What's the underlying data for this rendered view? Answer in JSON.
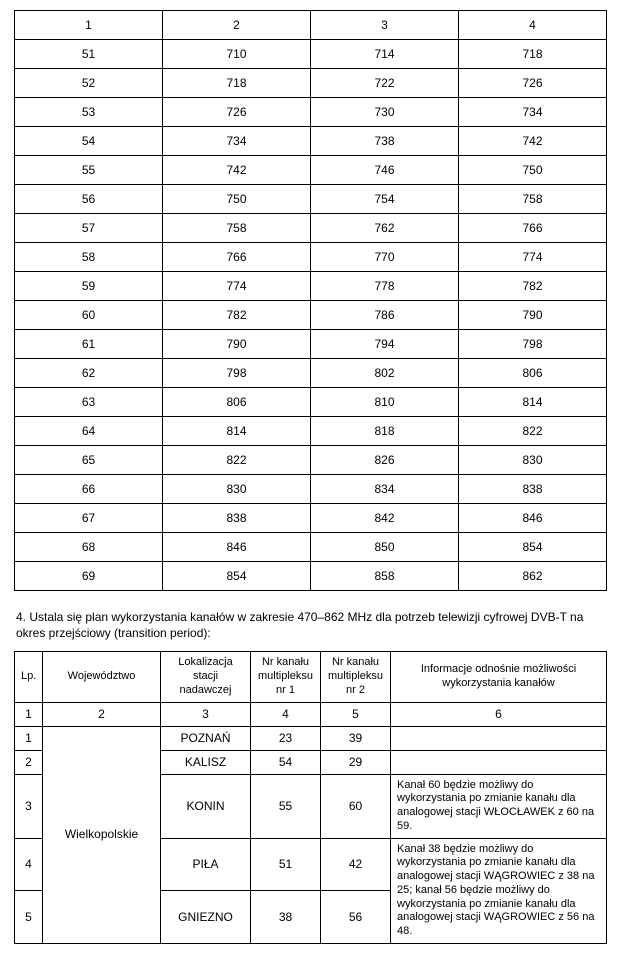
{
  "table1": {
    "header": [
      "1",
      "2",
      "3",
      "4"
    ],
    "rows": [
      [
        "51",
        "710",
        "714",
        "718"
      ],
      [
        "52",
        "718",
        "722",
        "726"
      ],
      [
        "53",
        "726",
        "730",
        "734"
      ],
      [
        "54",
        "734",
        "738",
        "742"
      ],
      [
        "55",
        "742",
        "746",
        "750"
      ],
      [
        "56",
        "750",
        "754",
        "758"
      ],
      [
        "57",
        "758",
        "762",
        "766"
      ],
      [
        "58",
        "766",
        "770",
        "774"
      ],
      [
        "59",
        "774",
        "778",
        "782"
      ],
      [
        "60",
        "782",
        "786",
        "790"
      ],
      [
        "61",
        "790",
        "794",
        "798"
      ],
      [
        "62",
        "798",
        "802",
        "806"
      ],
      [
        "63",
        "806",
        "810",
        "814"
      ],
      [
        "64",
        "814",
        "818",
        "822"
      ],
      [
        "65",
        "822",
        "826",
        "830"
      ],
      [
        "66",
        "830",
        "834",
        "838"
      ],
      [
        "67",
        "838",
        "842",
        "846"
      ],
      [
        "68",
        "846",
        "850",
        "854"
      ],
      [
        "69",
        "854",
        "858",
        "862"
      ]
    ]
  },
  "section_text": "4. Ustala się plan wykorzystania kanałów w zakresie 470–862 MHz dla potrzeb telewizji cyfrowej DVB-T na okres przejściowy (transition period):",
  "table2": {
    "headers": {
      "lp": "Lp.",
      "woj": "Województwo",
      "lok": "Lokalizacja stacji nadawczej",
      "m1": "Nr kanału multipleksu nr 1",
      "m2": "Nr kanału multipleksu nr 2",
      "info": "Informacje odnośnie możliwości wykorzystania kanałów"
    },
    "numrow": [
      "1",
      "2",
      "3",
      "4",
      "5",
      "6"
    ],
    "wojewodztwo": "Wielkopolskie",
    "rows": [
      {
        "lp": "1",
        "lok": "POZNAŃ",
        "m1": "23",
        "m2": "39",
        "info": ""
      },
      {
        "lp": "2",
        "lok": "KALISZ",
        "m1": "54",
        "m2": "29",
        "info": ""
      },
      {
        "lp": "3",
        "lok": "KONIN",
        "m1": "55",
        "m2": "60",
        "info": "Kanał 60 będzie możliwy do wykorzystania po zmianie kanału dla analogowej stacji WŁOCŁAWEK z 60 na 59."
      },
      {
        "lp": "4",
        "lok": "PIŁA",
        "m1": "51",
        "m2": "42",
        "info": "Kanał 38 będzie możliwy do wykorzystania po zmianie kanału dla analogowej stacji WĄGROWIEC z 38 na 25;"
      },
      {
        "lp": "5",
        "lok": "GNIEZNO",
        "m1": "38",
        "m2": "56",
        "info": "kanał 56 będzie możliwy do wykorzystania po zmianie kanału dla analogowej stacji WĄGROWIEC z 56 na 48."
      }
    ],
    "col_widths": [
      "28px",
      "118px",
      "90px",
      "70px",
      "70px",
      "auto"
    ]
  }
}
